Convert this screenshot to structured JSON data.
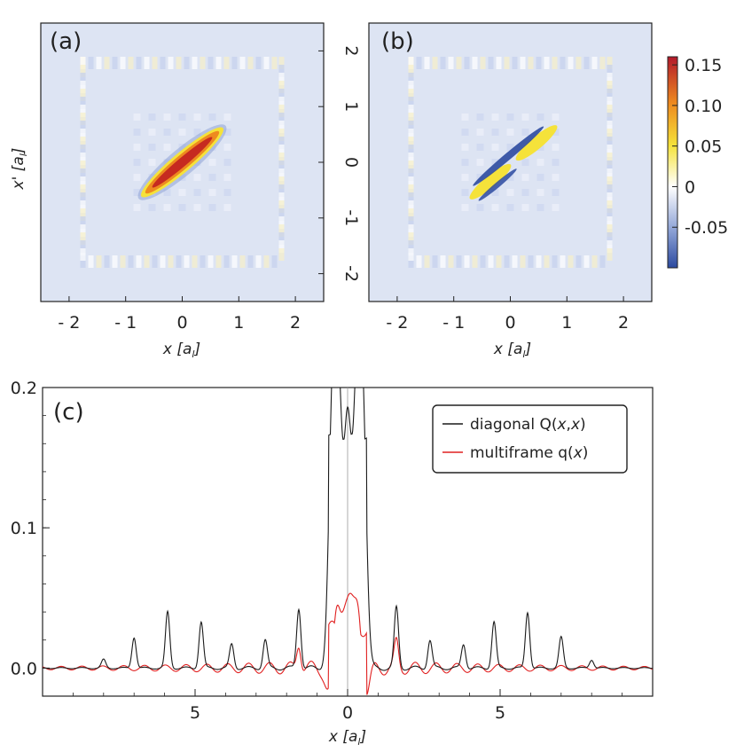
{
  "figure": {
    "panel_a_label": "(a)",
    "panel_b_label": "(b)",
    "panel_c_label": "(c)"
  },
  "colors": {
    "heatmap_background": "#dde4f3",
    "colorbar_top": "#b2182b",
    "colorbar_mid_yellow": "#f5e23a",
    "colorbar_zero": "#ffffff",
    "colorbar_bottom": "#2c4aa0",
    "series_diagonal": "#1a1a1a",
    "series_multiframe": "#e02020"
  },
  "chart_data": [
    {
      "type": "heatmap",
      "panel": "(a)",
      "xlabel": "x [a",
      "xlabel_sub": "l",
      "xlabel_close": "]",
      "ylabel": "x' [a",
      "ylabel_sub": "l",
      "ylabel_close": "]",
      "xlim": [
        -2.5,
        2.5
      ],
      "ylim": [
        -2.5,
        2.5
      ],
      "x_ticks": [
        "- 2",
        "- 1",
        "0",
        "1",
        "2"
      ],
      "y_ticks": [
        "2",
        "1",
        "0",
        "-1",
        "-2"
      ],
      "description_values": {
        "peak": 0.15,
        "feature": "positive ridge along x = x' from -0.6 to 0.6"
      }
    },
    {
      "type": "heatmap",
      "panel": "(b)",
      "xlabel": "x [a",
      "xlabel_sub": "l",
      "xlabel_close": "]",
      "xlim": [
        -2.5,
        2.5
      ],
      "ylim": [
        -2.5,
        2.5
      ],
      "x_ticks": [
        "- 2",
        "- 1",
        "0",
        "1",
        "2"
      ],
      "colorbar": {
        "range": [
          -0.1,
          0.16
        ],
        "ticks": [
          "0.15",
          "0.10",
          "0.05",
          "0",
          "-0.05"
        ],
        "tick_values": [
          0.15,
          0.1,
          0.05,
          0.0,
          -0.05
        ]
      },
      "description_values": {
        "peak": 0.06,
        "trough": -0.08,
        "feature": "alternating ridge along x = x'"
      }
    },
    {
      "type": "line",
      "panel": "(c)",
      "xlabel": "x [a",
      "xlabel_sub": "l",
      "xlabel_close": "]",
      "xlim": [
        -10,
        10
      ],
      "ylim": [
        -0.02,
        0.2
      ],
      "x_ticks": [
        "5",
        "0",
        "5"
      ],
      "x_tick_values": [
        -5,
        0,
        5
      ],
      "y_ticks": [
        "0.0",
        "0.1",
        "0.2"
      ],
      "y_tick_values": [
        0.0,
        0.1,
        0.2
      ],
      "legend_position": "top-right",
      "series": [
        {
          "name": "diagonal Q(x,x)",
          "name_parts": [
            "diagonal Q(",
            "x",
            ",",
            "x",
            ")"
          ],
          "peaks": [
            {
              "x": -8.0,
              "y": 0.006
            },
            {
              "x": -7.0,
              "y": 0.022
            },
            {
              "x": -5.9,
              "y": 0.04
            },
            {
              "x": -4.8,
              "y": 0.033
            },
            {
              "x": -3.8,
              "y": 0.017
            },
            {
              "x": -2.7,
              "y": 0.02
            },
            {
              "x": -1.6,
              "y": 0.043
            },
            {
              "x": -0.5,
              "y": 0.172
            },
            {
              "x": -0.3,
              "y": 0.183
            },
            {
              "x": 0.0,
              "y": 0.17
            },
            {
              "x": 0.3,
              "y": 0.183
            },
            {
              "x": 0.5,
              "y": 0.172
            },
            {
              "x": 1.6,
              "y": 0.043
            },
            {
              "x": 2.7,
              "y": 0.02
            },
            {
              "x": 3.8,
              "y": 0.017
            },
            {
              "x": 4.8,
              "y": 0.033
            },
            {
              "x": 5.9,
              "y": 0.04
            },
            {
              "x": 7.0,
              "y": 0.022
            },
            {
              "x": 8.0,
              "y": 0.006
            }
          ]
        },
        {
          "name": "multiframe q(x)",
          "name_parts": [
            "multiframe q(",
            "x",
            ")"
          ],
          "peaks": [
            {
              "x": -0.35,
              "y": 0.042
            },
            {
              "x": -0.1,
              "y": 0.035
            },
            {
              "x": 0.1,
              "y": 0.035
            },
            {
              "x": 0.35,
              "y": 0.042
            },
            {
              "x": -0.6,
              "y": -0.02
            },
            {
              "x": 0.6,
              "y": -0.02
            },
            {
              "x": -1.6,
              "y": 0.018
            },
            {
              "x": 1.6,
              "y": 0.018
            }
          ]
        }
      ]
    }
  ]
}
